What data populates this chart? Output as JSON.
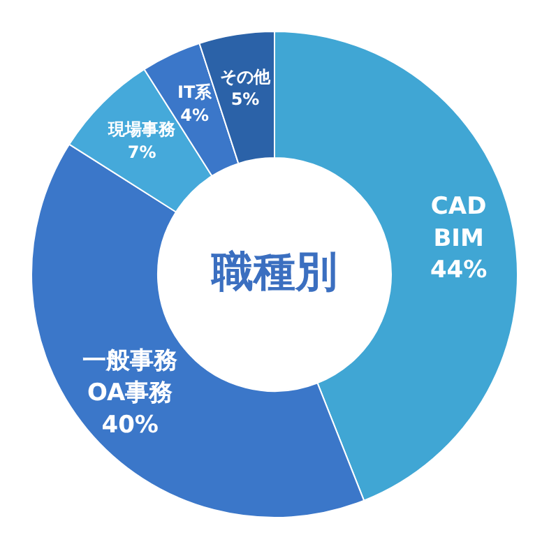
{
  "chart_data": {
    "type": "donut",
    "title": "職種別",
    "categories": [
      "CAD\nBIM",
      "一般事務\nOA事務",
      "現場事務",
      "IT系",
      "その他"
    ],
    "values": [
      44,
      40,
      7,
      4,
      5
    ],
    "value_labels": [
      "44%",
      "40%",
      "7%",
      "4%",
      "5%"
    ],
    "colors": [
      "#40a6d4",
      "#3b77c9",
      "#45a9da",
      "#3b77c9",
      "#2b62a8"
    ],
    "legend": false
  }
}
